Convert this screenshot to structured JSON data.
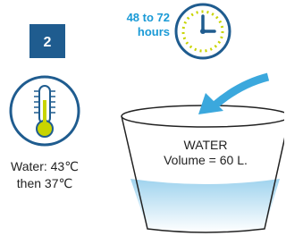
{
  "badge": "2",
  "clock": {
    "lines": [
      "48 to 72",
      "hours"
    ]
  },
  "thermometer": {
    "lines": [
      "Water: 43℃",
      "then 37℃"
    ]
  },
  "bucket": {
    "lines": [
      "WATER",
      "Volume = 60 L."
    ]
  }
}
